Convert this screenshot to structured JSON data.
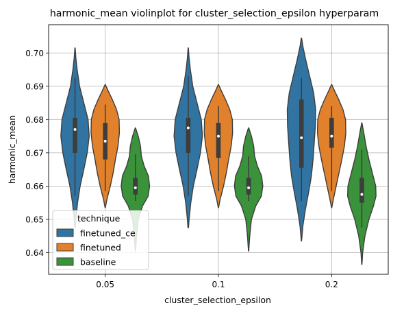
{
  "chart_data": {
    "type": "violin",
    "title": "harmonic_mean violinplot for cluster_selection_epsilon hyperparam",
    "xlabel": "cluster_selection_epsilon",
    "ylabel": "harmonic_mean",
    "categories": [
      "0.05",
      "0.1",
      "0.2"
    ],
    "ylim": [
      0.6335,
      0.7085
    ],
    "yticks": [
      0.64,
      0.65,
      0.66,
      0.67,
      0.68,
      0.69,
      0.7
    ],
    "ytick_labels": [
      "0.64",
      "0.65",
      "0.66",
      "0.67",
      "0.68",
      "0.69",
      "0.70"
    ],
    "grid": true,
    "legend": {
      "title": "technique",
      "placement": "lower-left"
    },
    "series": [
      {
        "name": "finetuned_ce",
        "color": "#3274a1",
        "groups": [
          {
            "min": 0.6475,
            "max": 0.7015,
            "whisker_low": 0.657,
            "whisker_high": 0.6925,
            "q1": 0.67,
            "q3": 0.6805,
            "median": 0.677,
            "profile": [
              [
                0.6475,
                0.02
              ],
              [
                0.65,
                0.06
              ],
              [
                0.655,
                0.18
              ],
              [
                0.66,
                0.36
              ],
              [
                0.665,
                0.62
              ],
              [
                0.67,
                0.86
              ],
              [
                0.675,
                1.0
              ],
              [
                0.68,
                0.92
              ],
              [
                0.685,
                0.62
              ],
              [
                0.69,
                0.32
              ],
              [
                0.695,
                0.15
              ],
              [
                0.6985,
                0.06
              ],
              [
                0.7015,
                0.01
              ]
            ]
          },
          {
            "min": 0.6475,
            "max": 0.7015,
            "whisker_low": 0.657,
            "whisker_high": 0.693,
            "q1": 0.67,
            "q3": 0.6805,
            "median": 0.6775,
            "profile": [
              [
                0.6475,
                0.02
              ],
              [
                0.65,
                0.06
              ],
              [
                0.655,
                0.18
              ],
              [
                0.66,
                0.36
              ],
              [
                0.665,
                0.62
              ],
              [
                0.67,
                0.86
              ],
              [
                0.675,
                1.0
              ],
              [
                0.68,
                0.92
              ],
              [
                0.685,
                0.62
              ],
              [
                0.69,
                0.32
              ],
              [
                0.695,
                0.15
              ],
              [
                0.6985,
                0.06
              ],
              [
                0.7015,
                0.01
              ]
            ]
          },
          {
            "min": 0.6435,
            "max": 0.7045,
            "whisker_low": 0.6555,
            "whisker_high": 0.6925,
            "q1": 0.6655,
            "q3": 0.686,
            "median": 0.6745,
            "profile": [
              [
                0.6435,
                0.01
              ],
              [
                0.648,
                0.1
              ],
              [
                0.653,
                0.28
              ],
              [
                0.658,
                0.5
              ],
              [
                0.663,
                0.7
              ],
              [
                0.668,
                0.82
              ],
              [
                0.673,
                0.9
              ],
              [
                0.678,
                0.98
              ],
              [
                0.683,
                1.0
              ],
              [
                0.688,
                0.86
              ],
              [
                0.693,
                0.58
              ],
              [
                0.698,
                0.3
              ],
              [
                0.702,
                0.1
              ],
              [
                0.7045,
                0.01
              ]
            ]
          }
        ]
      },
      {
        "name": "finetuned",
        "color": "#e1812c",
        "groups": [
          {
            "min": 0.6535,
            "max": 0.6905,
            "whisker_low": 0.6585,
            "whisker_high": 0.6845,
            "q1": 0.668,
            "q3": 0.679,
            "median": 0.6735,
            "profile": [
              [
                0.6535,
                0.01
              ],
              [
                0.656,
                0.12
              ],
              [
                0.66,
                0.36
              ],
              [
                0.664,
                0.56
              ],
              [
                0.668,
                0.72
              ],
              [
                0.672,
                0.9
              ],
              [
                0.676,
                1.0
              ],
              [
                0.68,
                0.98
              ],
              [
                0.683,
                0.8
              ],
              [
                0.686,
                0.5
              ],
              [
                0.6885,
                0.22
              ],
              [
                0.6905,
                0.01
              ]
            ]
          },
          {
            "min": 0.6535,
            "max": 0.6905,
            "whisker_low": 0.6585,
            "whisker_high": 0.684,
            "q1": 0.6685,
            "q3": 0.679,
            "median": 0.675,
            "profile": [
              [
                0.6535,
                0.01
              ],
              [
                0.656,
                0.12
              ],
              [
                0.66,
                0.36
              ],
              [
                0.664,
                0.56
              ],
              [
                0.668,
                0.72
              ],
              [
                0.672,
                0.9
              ],
              [
                0.676,
                1.0
              ],
              [
                0.68,
                0.98
              ],
              [
                0.683,
                0.8
              ],
              [
                0.686,
                0.5
              ],
              [
                0.6885,
                0.22
              ],
              [
                0.6905,
                0.01
              ]
            ]
          },
          {
            "min": 0.6535,
            "max": 0.6905,
            "whisker_low": 0.6585,
            "whisker_high": 0.684,
            "q1": 0.6715,
            "q3": 0.6805,
            "median": 0.675,
            "profile": [
              [
                0.6535,
                0.01
              ],
              [
                0.656,
                0.12
              ],
              [
                0.66,
                0.32
              ],
              [
                0.664,
                0.52
              ],
              [
                0.668,
                0.72
              ],
              [
                0.672,
                0.9
              ],
              [
                0.676,
                1.0
              ],
              [
                0.68,
                0.98
              ],
              [
                0.683,
                0.8
              ],
              [
                0.686,
                0.5
              ],
              [
                0.6885,
                0.22
              ],
              [
                0.6905,
                0.01
              ]
            ]
          }
        ]
      },
      {
        "name": "baseline",
        "color": "#3a923a",
        "groups": [
          {
            "min": 0.6405,
            "max": 0.6775,
            "whisker_low": 0.6555,
            "whisker_high": 0.6695,
            "q1": 0.6575,
            "q3": 0.6625,
            "median": 0.6595,
            "profile": [
              [
                0.6405,
                0.01
              ],
              [
                0.645,
                0.08
              ],
              [
                0.65,
                0.2
              ],
              [
                0.654,
                0.5
              ],
              [
                0.657,
                0.9
              ],
              [
                0.66,
                1.0
              ],
              [
                0.663,
                0.92
              ],
              [
                0.666,
                0.62
              ],
              [
                0.669,
                0.42
              ],
              [
                0.672,
                0.36
              ],
              [
                0.675,
                0.2
              ],
              [
                0.6775,
                0.01
              ]
            ]
          },
          {
            "min": 0.6405,
            "max": 0.6775,
            "whisker_low": 0.6555,
            "whisker_high": 0.669,
            "q1": 0.6575,
            "q3": 0.6625,
            "median": 0.6595,
            "profile": [
              [
                0.6405,
                0.01
              ],
              [
                0.645,
                0.08
              ],
              [
                0.65,
                0.2
              ],
              [
                0.654,
                0.5
              ],
              [
                0.657,
                0.9
              ],
              [
                0.66,
                1.0
              ],
              [
                0.663,
                0.92
              ],
              [
                0.666,
                0.62
              ],
              [
                0.669,
                0.42
              ],
              [
                0.672,
                0.36
              ],
              [
                0.675,
                0.2
              ],
              [
                0.6775,
                0.01
              ]
            ]
          },
          {
            "min": 0.6365,
            "max": 0.679,
            "whisker_low": 0.6475,
            "whisker_high": 0.671,
            "q1": 0.655,
            "q3": 0.6625,
            "median": 0.6575,
            "profile": [
              [
                0.6365,
                0.01
              ],
              [
                0.64,
                0.06
              ],
              [
                0.645,
                0.22
              ],
              [
                0.65,
                0.5
              ],
              [
                0.654,
                0.82
              ],
              [
                0.657,
                1.0
              ],
              [
                0.66,
                0.98
              ],
              [
                0.664,
                0.74
              ],
              [
                0.668,
                0.5
              ],
              [
                0.672,
                0.3
              ],
              [
                0.676,
                0.14
              ],
              [
                0.679,
                0.01
              ]
            ]
          }
        ]
      }
    ]
  }
}
